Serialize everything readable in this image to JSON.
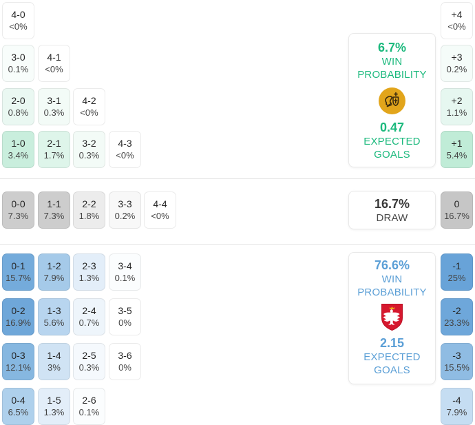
{
  "chart_data": {
    "type": "heatmap",
    "layout_hint": "lower-triangle exact-score probability matrices grouped by outcome (home win / draw / away win); right-hand column = goal-margin totals; summary cards on the right",
    "sections": [
      {
        "name": "home-win",
        "accent_color": "#1cb97d",
        "summary": {
          "win_probability": "6.7%",
          "win_probability_label": [
            "WIN",
            "PROBABILITY"
          ],
          "expected_goals": "0.47",
          "expected_goals_label": [
            "EXPECTED",
            "GOALS"
          ],
          "badge": "gold-team-crest",
          "badge_color": "#e2a51b"
        },
        "cells": [
          {
            "score": "4-0",
            "pct": "<0%",
            "row": 0,
            "col": 0,
            "bg": "#ffffff"
          },
          {
            "score": "3-0",
            "pct": "0.1%",
            "row": 1,
            "col": 0,
            "bg": "#f8fdfb"
          },
          {
            "score": "4-1",
            "pct": "<0%",
            "row": 1,
            "col": 1,
            "bg": "#ffffff"
          },
          {
            "score": "2-0",
            "pct": "0.8%",
            "row": 2,
            "col": 0,
            "bg": "#eaf8f2"
          },
          {
            "score": "3-1",
            "pct": "0.3%",
            "row": 2,
            "col": 1,
            "bg": "#f3fbf7"
          },
          {
            "score": "4-2",
            "pct": "<0%",
            "row": 2,
            "col": 2,
            "bg": "#ffffff"
          },
          {
            "score": "1-0",
            "pct": "3.4%",
            "row": 3,
            "col": 0,
            "bg": "#c9eedd"
          },
          {
            "score": "2-1",
            "pct": "1.7%",
            "row": 3,
            "col": 1,
            "bg": "#def5ea"
          },
          {
            "score": "3-2",
            "pct": "0.3%",
            "row": 3,
            "col": 2,
            "bg": "#f3fbf7"
          },
          {
            "score": "4-3",
            "pct": "<0%",
            "row": 3,
            "col": 3,
            "bg": "#ffffff"
          }
        ],
        "goal_margin_cells": [
          {
            "label": "+4",
            "pct": "<0%",
            "row": 0,
            "bg": "#ffffff"
          },
          {
            "label": "+3",
            "pct": "0.2%",
            "row": 1,
            "bg": "#f5fcf9"
          },
          {
            "label": "+2",
            "pct": "1.1%",
            "row": 2,
            "bg": "#e6f7f0"
          },
          {
            "label": "+1",
            "pct": "5.4%",
            "row": 3,
            "bg": "#c0ecd7"
          }
        ]
      },
      {
        "name": "draw",
        "accent_color": "#3a3a3a",
        "summary": {
          "probability": "16.7%",
          "label": "DRAW"
        },
        "cells": [
          {
            "score": "0-0",
            "pct": "7.3%",
            "row": 0,
            "col": 0,
            "bg": "#cdcdcd"
          },
          {
            "score": "1-1",
            "pct": "7.3%",
            "row": 0,
            "col": 1,
            "bg": "#cdcdcd"
          },
          {
            "score": "2-2",
            "pct": "1.8%",
            "row": 0,
            "col": 2,
            "bg": "#ececec"
          },
          {
            "score": "3-3",
            "pct": "0.2%",
            "row": 0,
            "col": 3,
            "bg": "#f8f8f8"
          },
          {
            "score": "4-4",
            "pct": "<0%",
            "row": 0,
            "col": 4,
            "bg": "#ffffff"
          }
        ],
        "goal_margin_cells": [
          {
            "label": "0",
            "pct": "16.7%",
            "row": 0,
            "bg": "#c6c6c6"
          }
        ]
      },
      {
        "name": "away-win",
        "accent_color": "#5b9fd6",
        "summary": {
          "win_probability": "76.6%",
          "win_probability_label": [
            "WIN",
            "PROBABILITY"
          ],
          "expected_goals": "2.15",
          "expected_goals_label": [
            "EXPECTED",
            "GOALS"
          ],
          "badge": "poland-eagle-crest",
          "badge_color": "#d6182e"
        },
        "cells": [
          {
            "score": "0-1",
            "pct": "15.7%",
            "row": 0,
            "col": 0,
            "bg": "#74abdb"
          },
          {
            "score": "1-2",
            "pct": "7.9%",
            "row": 0,
            "col": 1,
            "bg": "#a5cae9"
          },
          {
            "score": "2-3",
            "pct": "1.3%",
            "row": 0,
            "col": 2,
            "bg": "#e3eef9"
          },
          {
            "score": "3-4",
            "pct": "0.1%",
            "row": 0,
            "col": 3,
            "bg": "#fbfdfe"
          },
          {
            "score": "0-2",
            "pct": "16.9%",
            "row": 1,
            "col": 0,
            "bg": "#6fa7d9"
          },
          {
            "score": "1-3",
            "pct": "5.6%",
            "row": 1,
            "col": 1,
            "bg": "#b8d5ef"
          },
          {
            "score": "2-4",
            "pct": "0.7%",
            "row": 1,
            "col": 2,
            "bg": "#eef5fb"
          },
          {
            "score": "3-5",
            "pct": "0%",
            "row": 1,
            "col": 3,
            "bg": "#ffffff"
          },
          {
            "score": "0-3",
            "pct": "12.1%",
            "row": 2,
            "col": 0,
            "bg": "#86b7e0"
          },
          {
            "score": "1-4",
            "pct": "3%",
            "row": 2,
            "col": 1,
            "bg": "#d0e3f4"
          },
          {
            "score": "2-5",
            "pct": "0.3%",
            "row": 2,
            "col": 2,
            "bg": "#f5f9fd"
          },
          {
            "score": "3-6",
            "pct": "0%",
            "row": 2,
            "col": 3,
            "bg": "#ffffff"
          },
          {
            "score": "0-4",
            "pct": "6.5%",
            "row": 3,
            "col": 0,
            "bg": "#aed0ec"
          },
          {
            "score": "1-5",
            "pct": "1.3%",
            "row": 3,
            "col": 1,
            "bg": "#e3eef9"
          },
          {
            "score": "2-6",
            "pct": "0.1%",
            "row": 3,
            "col": 2,
            "bg": "#fbfdfe"
          }
        ],
        "goal_margin_cells": [
          {
            "label": "-1",
            "pct": "25%",
            "row": 0,
            "bg": "#68a3d8"
          },
          {
            "label": "-2",
            "pct": "23.3%",
            "row": 1,
            "bg": "#6ea7da"
          },
          {
            "label": "-3",
            "pct": "15.5%",
            "row": 2,
            "bg": "#8fbce3"
          },
          {
            "label": "-4",
            "pct": "7.9%",
            "row": 3,
            "bg": "#c5ddf2"
          }
        ]
      }
    ]
  }
}
